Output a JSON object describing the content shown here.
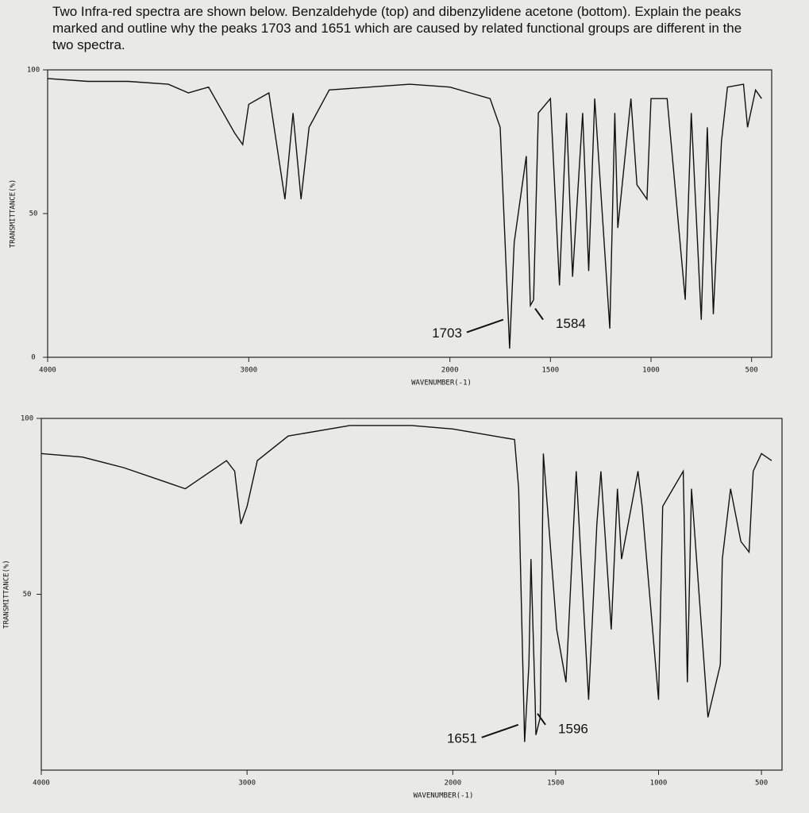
{
  "question": "Two Infra-red spectra are shown below. Benzaldehyde (top) and dibenzylidene acetone (bottom). Explain the peaks marked and outline why the peaks 1703 and 1651 which are caused by related functional groups are different in the two spectra.",
  "chart_data": [
    {
      "type": "line",
      "xlabel": "WAVENUMBER(-1)",
      "ylabel": "TRANSMITTANCE(%)",
      "color": "#111111",
      "x": [
        4000,
        3800,
        3600,
        3400,
        3300,
        3200,
        3070,
        3030,
        3000,
        2900,
        2820,
        2780,
        2740,
        2700,
        2600,
        2400,
        2200,
        2000,
        1900,
        1800,
        1750,
        1703,
        1680,
        1650,
        1620,
        1600,
        1584,
        1560,
        1500,
        1455,
        1420,
        1390,
        1340,
        1310,
        1280,
        1205,
        1180,
        1165,
        1100,
        1070,
        1020,
        1000,
        920,
        830,
        800,
        750,
        720,
        690,
        650,
        620,
        540,
        520,
        480,
        450
      ],
      "values": [
        97,
        96,
        96,
        95,
        92,
        94,
        78,
        74,
        88,
        92,
        55,
        85,
        55,
        80,
        93,
        94,
        95,
        94,
        92,
        90,
        80,
        3,
        40,
        55,
        70,
        18,
        20,
        85,
        90,
        25,
        85,
        28,
        85,
        30,
        90,
        10,
        85,
        45,
        90,
        60,
        55,
        90,
        90,
        20,
        85,
        13,
        80,
        15,
        75,
        94,
        95,
        80,
        93,
        90
      ],
      "xlim": [
        4000,
        400
      ],
      "xticks": [
        4000,
        3000,
        2000,
        1500,
        1000,
        500
      ],
      "ylim": [
        0,
        100
      ],
      "yticks": [
        0,
        50,
        100
      ],
      "annotations": [
        {
          "text": "1703",
          "x": 1703
        },
        {
          "text": "1584",
          "x": 1584
        }
      ]
    },
    {
      "type": "line",
      "xlabel": "WAVENUMBER(-1)",
      "ylabel": "TRANSMITTANCE(%)",
      "color": "#111111",
      "x": [
        4000,
        3800,
        3600,
        3400,
        3300,
        3200,
        3100,
        3060,
        3030,
        3000,
        2950,
        2800,
        2500,
        2200,
        2000,
        1800,
        1700,
        1680,
        1651,
        1630,
        1620,
        1600,
        1596,
        1575,
        1560,
        1495,
        1450,
        1400,
        1340,
        1300,
        1280,
        1230,
        1200,
        1180,
        1100,
        1080,
        1000,
        980,
        880,
        860,
        840,
        760,
        700,
        690,
        650,
        600,
        560,
        540,
        500,
        450
      ],
      "values": [
        90,
        89,
        86,
        82,
        80,
        84,
        88,
        85,
        70,
        75,
        88,
        95,
        98,
        98,
        97,
        95,
        94,
        80,
        8,
        30,
        60,
        20,
        10,
        15,
        90,
        40,
        25,
        85,
        20,
        70,
        85,
        40,
        80,
        60,
        85,
        75,
        20,
        75,
        85,
        25,
        80,
        15,
        30,
        60,
        80,
        65,
        62,
        85,
        90,
        88
      ],
      "xlim": [
        4000,
        400
      ],
      "xticks": [
        4000,
        3000,
        2000,
        1500,
        1000,
        500
      ],
      "ylim": [
        0,
        100
      ],
      "yticks": [
        50,
        100
      ],
      "annotations": [
        {
          "text": "1651",
          "x": 1651
        },
        {
          "text": "1596",
          "x": 1596
        }
      ]
    }
  ]
}
